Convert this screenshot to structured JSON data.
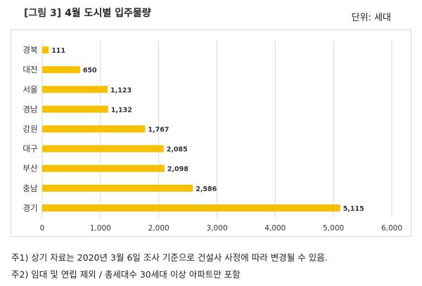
{
  "header": {
    "figure_label": "[그림 3]",
    "title": "4월 도시별 입주물량",
    "unit": "단위: 세대"
  },
  "notes": [
    "주1) 상기 자료는 2020년 3월 6일 조사 기준으로 건설사 사정에 따라 변경될 수 있음.",
    "주2) 임대 및 연립 제외 / 총세대수 30세대 이상 아파트만 포함"
  ],
  "colors": {
    "bar": "#f5c000",
    "grid": "#d9d9d9",
    "text": "#333333"
  },
  "chart_data": {
    "type": "bar",
    "orientation": "horizontal",
    "categories": [
      "경북",
      "대전",
      "서울",
      "경남",
      "강원",
      "대구",
      "부산",
      "충남",
      "경기"
    ],
    "values": [
      111,
      650,
      1123,
      1132,
      1767,
      2085,
      2098,
      2586,
      5115
    ],
    "value_labels": [
      "111",
      "650",
      "1,123",
      "1,132",
      "1,767",
      "2,085",
      "2,098",
      "2,586",
      "5,115"
    ],
    "xlim": [
      0,
      6000
    ],
    "xticks": [
      0,
      1000,
      2000,
      3000,
      4000,
      5000,
      6000
    ],
    "xtick_labels": [
      "0",
      "1,000",
      "2,000",
      "3,000",
      "4,000",
      "5,000",
      "6,000"
    ],
    "grid": true,
    "legend": "none"
  }
}
